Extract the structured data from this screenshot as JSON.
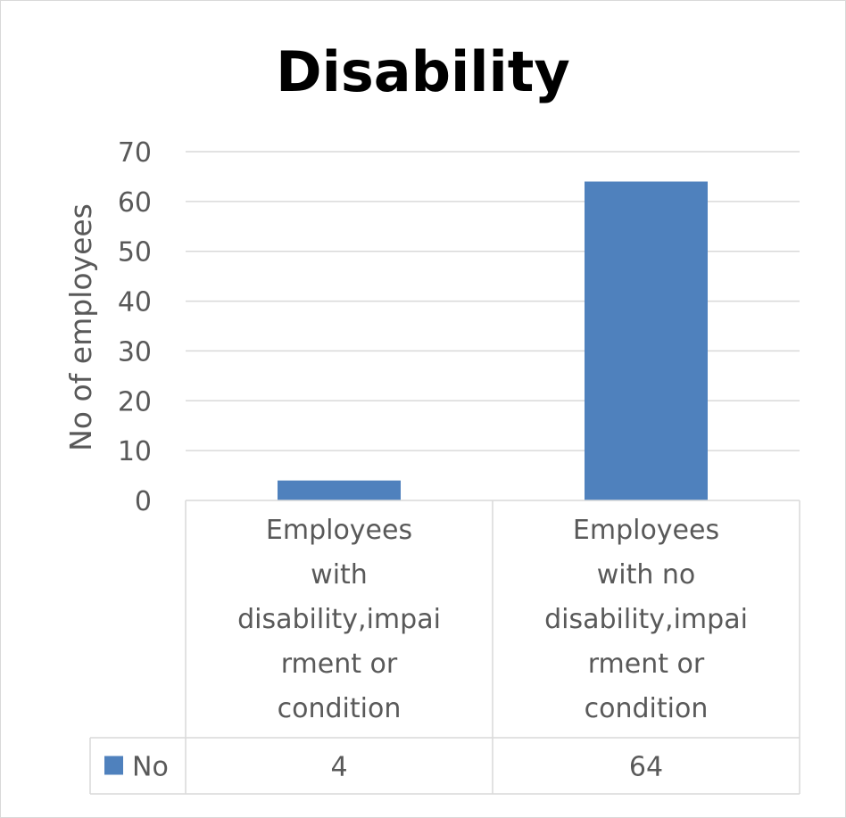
{
  "chart_data": {
    "type": "bar",
    "title": "Disability",
    "ylabel": "No of employees",
    "xlabel": "",
    "ylim": [
      0,
      70
    ],
    "yticks": [
      0,
      10,
      20,
      30,
      40,
      50,
      60,
      70
    ],
    "categories": [
      [
        "Employees",
        "with",
        "disability,impai",
        "rment or",
        "condition"
      ],
      [
        "Employees",
        "with no",
        "disability,impai",
        "rment or",
        "condition"
      ]
    ],
    "series": [
      {
        "name": "No",
        "values": [
          4,
          64
        ],
        "color": "#4f81bd"
      }
    ],
    "gridlines": true,
    "data_table": true
  }
}
